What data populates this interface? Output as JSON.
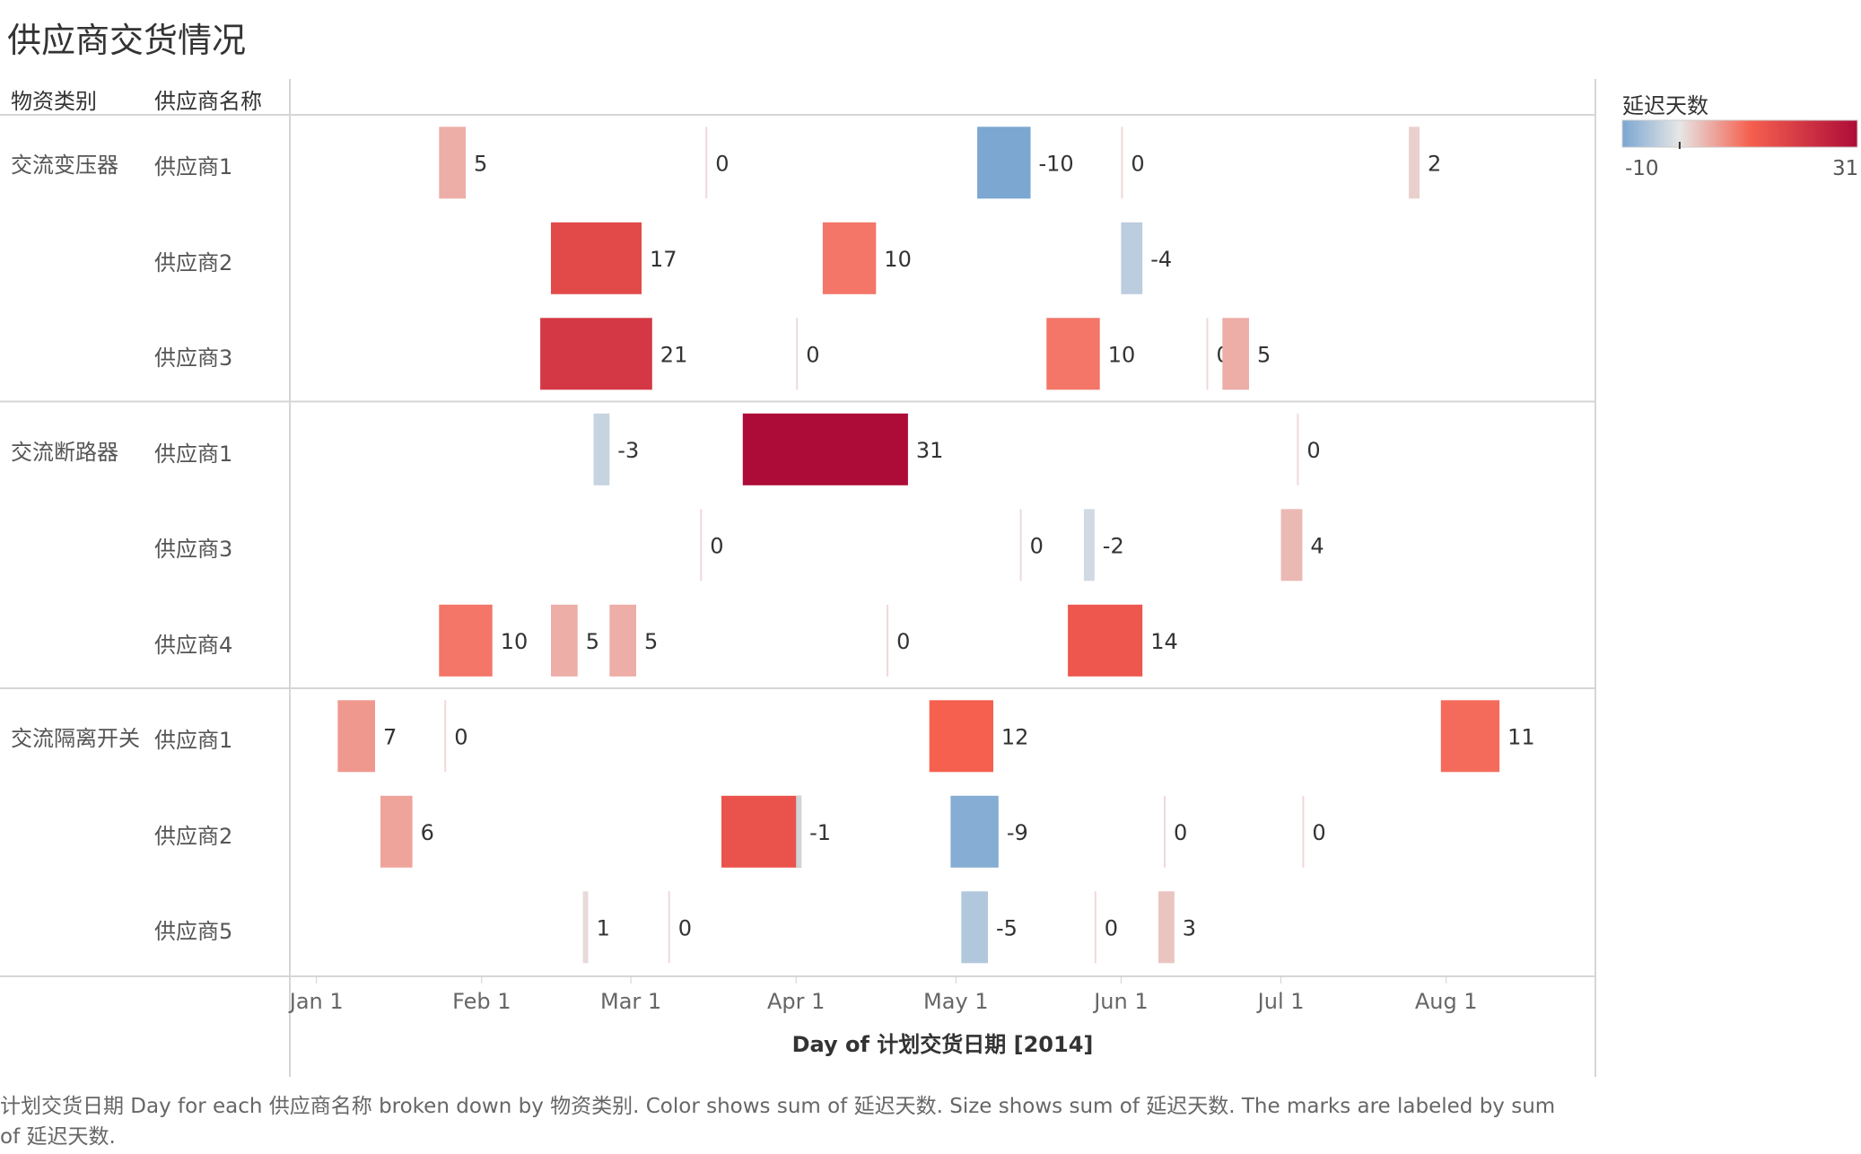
{
  "chart_data": {
    "type": "gantt",
    "title": "供应商交货情况",
    "column_headers": [
      "物资类别",
      "供应商名称"
    ],
    "xlabel": "Day of 计划交货日期 [2014]",
    "x_ticks": [
      "Jan 1",
      "Feb 1",
      "Mar 1",
      "Apr 1",
      "May 1",
      "Jun 1",
      "Jul 1",
      "Aug 1"
    ],
    "x_range": [
      "2013-12-27",
      "2014-08-29"
    ],
    "color_legend": {
      "title": "延迟天数",
      "min": -10,
      "max": 31,
      "palette": [
        "#7ba7d1",
        "#e6e6e6",
        "#f5604f",
        "#ad0c38"
      ]
    },
    "groups": [
      {
        "category": "交流变压器",
        "suppliers": [
          {
            "name": "供应商1",
            "marks": [
              {
                "start": "2014-01-24",
                "days": 5,
                "label": "5"
              },
              {
                "start": "2014-03-15",
                "days": 0,
                "label": "0"
              },
              {
                "start": "2014-05-05",
                "days": -10,
                "label": "-10"
              },
              {
                "start": "2014-06-01",
                "days": 0,
                "label": "0"
              },
              {
                "start": "2014-07-25",
                "days": 2,
                "label": "2"
              }
            ]
          },
          {
            "name": "供应商2",
            "marks": [
              {
                "start": "2014-02-14",
                "days": 17,
                "label": "17"
              },
              {
                "start": "2014-04-06",
                "days": 10,
                "label": "10"
              },
              {
                "start": "2014-06-01",
                "days": -4,
                "label": "-4"
              }
            ]
          },
          {
            "name": "供应商3",
            "marks": [
              {
                "start": "2014-02-12",
                "days": 21,
                "label": "21"
              },
              {
                "start": "2014-04-01",
                "days": 0,
                "label": "0"
              },
              {
                "start": "2014-05-18",
                "days": 10,
                "label": "10"
              },
              {
                "start": "2014-06-17",
                "days": 0,
                "label": "0"
              },
              {
                "start": "2014-06-20",
                "days": 5,
                "label": "5"
              }
            ]
          }
        ]
      },
      {
        "category": "交流断路器",
        "suppliers": [
          {
            "name": "供应商1",
            "marks": [
              {
                "start": "2014-02-22",
                "days": -3,
                "label": "-3"
              },
              {
                "start": "2014-03-22",
                "days": 31,
                "label": "31"
              },
              {
                "start": "2014-07-04",
                "days": 0,
                "label": "0"
              }
            ]
          },
          {
            "name": "供应商3",
            "marks": [
              {
                "start": "2014-03-14",
                "days": 0,
                "label": "0"
              },
              {
                "start": "2014-05-13",
                "days": 0,
                "label": "0"
              },
              {
                "start": "2014-05-25",
                "days": -2,
                "label": "-2"
              },
              {
                "start": "2014-07-01",
                "days": 4,
                "label": "4"
              }
            ]
          },
          {
            "name": "供应商4",
            "marks": [
              {
                "start": "2014-01-24",
                "days": 10,
                "label": "10"
              },
              {
                "start": "2014-02-14",
                "days": 5,
                "label": "5"
              },
              {
                "start": "2014-02-25",
                "days": 5,
                "label": "5"
              },
              {
                "start": "2014-04-18",
                "days": 0,
                "label": "0"
              },
              {
                "start": "2014-05-22",
                "days": 14,
                "label": "14"
              }
            ]
          }
        ]
      },
      {
        "category": "交流隔离开关",
        "suppliers": [
          {
            "name": "供应商1",
            "marks": [
              {
                "start": "2014-01-05",
                "days": 7,
                "label": "7"
              },
              {
                "start": "2014-01-25",
                "days": 0,
                "label": "0"
              },
              {
                "start": "2014-04-26",
                "days": 12,
                "label": "12"
              },
              {
                "start": "2014-07-31",
                "days": 11,
                "label": "11"
              }
            ]
          },
          {
            "name": "供应商2",
            "marks": [
              {
                "start": "2014-01-13",
                "days": 6,
                "label": "6"
              },
              {
                "start": "2014-03-18",
                "days": 15,
                "label": ""
              },
              {
                "start": "2014-04-01",
                "days": -1,
                "label": "-1"
              },
              {
                "start": "2014-04-30",
                "days": -9,
                "label": "-9"
              },
              {
                "start": "2014-06-09",
                "days": 0,
                "label": "0"
              },
              {
                "start": "2014-07-05",
                "days": 0,
                "label": "0"
              }
            ]
          },
          {
            "name": "供应商5",
            "marks": [
              {
                "start": "2014-02-20",
                "days": 1,
                "label": "1"
              },
              {
                "start": "2014-03-08",
                "days": 0,
                "label": "0"
              },
              {
                "start": "2014-05-02",
                "days": -5,
                "label": "-5"
              },
              {
                "start": "2014-05-27",
                "days": 0,
                "label": "0"
              },
              {
                "start": "2014-06-08",
                "days": 3,
                "label": "3"
              }
            ]
          }
        ]
      }
    ]
  },
  "caption": "计划交货日期 Day for each 供应商名称 broken down by 物资类别.  Color shows sum of 延迟天数.  Size shows sum of 延迟天数.  The marks are labeled by sum of 延迟天数."
}
